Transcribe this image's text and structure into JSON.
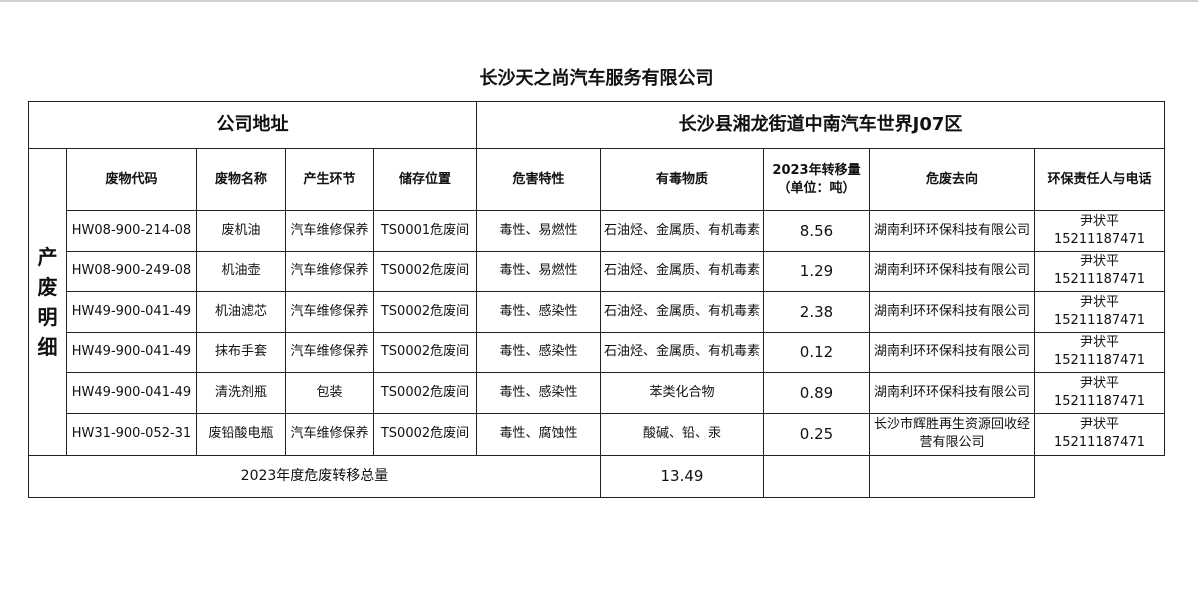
{
  "title": "长沙天之尚汽车服务有限公司",
  "address_label": "公司地址",
  "address_value": "长沙县湘龙街道中南汽车世界J07区",
  "side_label": [
    "产",
    "废",
    "明",
    "细"
  ],
  "columns": [
    "废物代码",
    "废物名称",
    "产生环节",
    "储存位置",
    "危害特性",
    "有毒物质",
    "2023年转移量",
    "（单位：吨）",
    "危废去向",
    "环保责任人与电话"
  ],
  "rows": [
    {
      "code": "HW08-900-214-08",
      "name": "废机油",
      "stage": "汽车维修保养",
      "storage": "TS0001危废间",
      "hazard": "毒性、易燃性",
      "toxic": "石油烃、金属质、有机毒素",
      "amount": "8.56",
      "dest": "湖南利环环保科技有限公司",
      "dest2": "",
      "person": "尹状平",
      "phone": "15211187471"
    },
    {
      "code": "HW08-900-249-08",
      "name": "机油壶",
      "stage": "汽车维修保养",
      "storage": "TS0002危废间",
      "hazard": "毒性、易燃性",
      "toxic": "石油烃、金属质、有机毒素",
      "amount": "1.29",
      "dest": "湖南利环环保科技有限公司",
      "dest2": "",
      "person": "尹状平",
      "phone": "15211187471"
    },
    {
      "code": "HW49-900-041-49",
      "name": "机油滤芯",
      "stage": "汽车维修保养",
      "storage": "TS0002危废间",
      "hazard": "毒性、感染性",
      "toxic": "石油烃、金属质、有机毒素",
      "amount": "2.38",
      "dest": "湖南利环环保科技有限公司",
      "dest2": "",
      "person": "尹状平",
      "phone": "15211187471"
    },
    {
      "code": "HW49-900-041-49",
      "name": "抹布手套",
      "stage": "汽车维修保养",
      "storage": "TS0002危废间",
      "hazard": "毒性、感染性",
      "toxic": "石油烃、金属质、有机毒素",
      "amount": "0.12",
      "dest": "湖南利环环保科技有限公司",
      "dest2": "",
      "person": "尹状平",
      "phone": "15211187471"
    },
    {
      "code": "HW49-900-041-49",
      "name": "清洗剂瓶",
      "stage": "包装",
      "storage": "TS0002危废间",
      "hazard": "毒性、感染性",
      "toxic": "苯类化合物",
      "amount": "0.89",
      "dest": "湖南利环环保科技有限公司",
      "dest2": "",
      "person": "尹状平",
      "phone": "15211187471"
    },
    {
      "code": "HW31-900-052-31",
      "name": "废铅酸电瓶",
      "stage": "汽车维修保养",
      "storage": "TS0002危废间",
      "hazard": "毒性、腐蚀性",
      "toxic": "酸碱、铅、汞",
      "amount": "0.25",
      "dest": "长沙市辉胜再生资源回收经",
      "dest2": "营有限公司",
      "person": "尹状平",
      "phone": "15211187471"
    }
  ],
  "total_label": "2023年度危废转移总量",
  "total_value": "13.49"
}
